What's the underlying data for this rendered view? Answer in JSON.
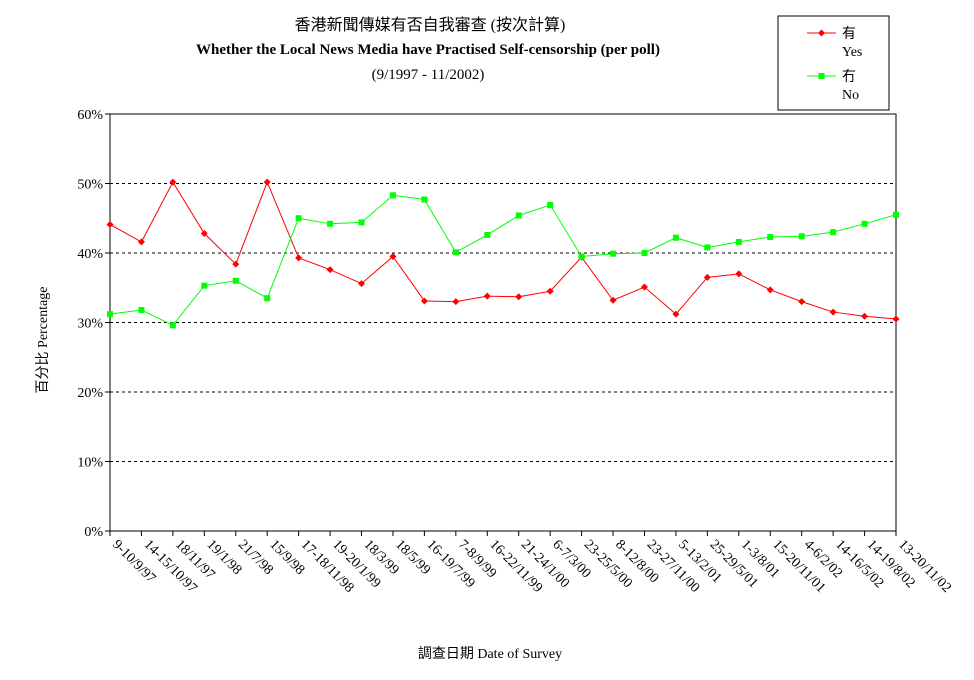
{
  "chart_data": {
    "type": "line",
    "title": "香港新聞傳媒有否自我審查 (按次計算)",
    "subtitle": "Whether the Local News Media have Practised Self-censorship (per poll)",
    "period": "(9/1997 - 11/2002)",
    "xlabel": "調查日期 Date of Survey",
    "ylabel": "百分比 Percentage",
    "ylim": [
      0,
      60
    ],
    "yticks": [
      "0%",
      "10%",
      "20%",
      "30%",
      "40%",
      "50%",
      "60%"
    ],
    "grid": true,
    "legend_position": "top-right",
    "categories": [
      "9-10/9/97",
      "14-15/10/97",
      "18/11/97",
      "19/1/98",
      "21/7/98",
      "15/9/98",
      "17-18/11/98",
      "19-20/1/99",
      "18/3/99",
      "18/5/99",
      "16-19/7/99",
      "7-8/9/99",
      "16-22/11/99",
      "21-24/1/00",
      "6-7/3/00",
      "23-25/5/00",
      "8-12/8/00",
      "23-27/11/00",
      "5-13/2/01",
      "25-29/5/01",
      "1-3/8/01",
      "15-20/11/01",
      "4-6/2/02",
      "14-16/5/02",
      "14-19/8/02",
      "13-20/11/02"
    ],
    "series": [
      {
        "name": "Yes",
        "label_cn": "有",
        "label_en": "Yes",
        "color": "#ff0000",
        "marker": "diamond",
        "values": [
          44.1,
          41.6,
          50.2,
          42.8,
          38.4,
          50.2,
          39.3,
          37.6,
          35.6,
          39.5,
          33.1,
          33.0,
          33.8,
          33.7,
          34.5,
          39.4,
          33.2,
          35.1,
          31.2,
          36.5,
          37.0,
          34.7,
          33.0,
          31.5,
          30.9,
          30.5
        ]
      },
      {
        "name": "No",
        "label_cn": "冇",
        "label_en": "No",
        "color": "#00ff00",
        "marker": "square",
        "values": [
          31.2,
          31.8,
          29.6,
          35.3,
          36.0,
          33.5,
          45.0,
          44.2,
          44.4,
          48.3,
          47.7,
          40.1,
          42.6,
          45.4,
          46.9,
          39.5,
          39.9,
          40.0,
          42.2,
          40.8,
          41.6,
          42.3,
          42.4,
          43.0,
          44.2,
          45.5
        ]
      }
    ]
  }
}
